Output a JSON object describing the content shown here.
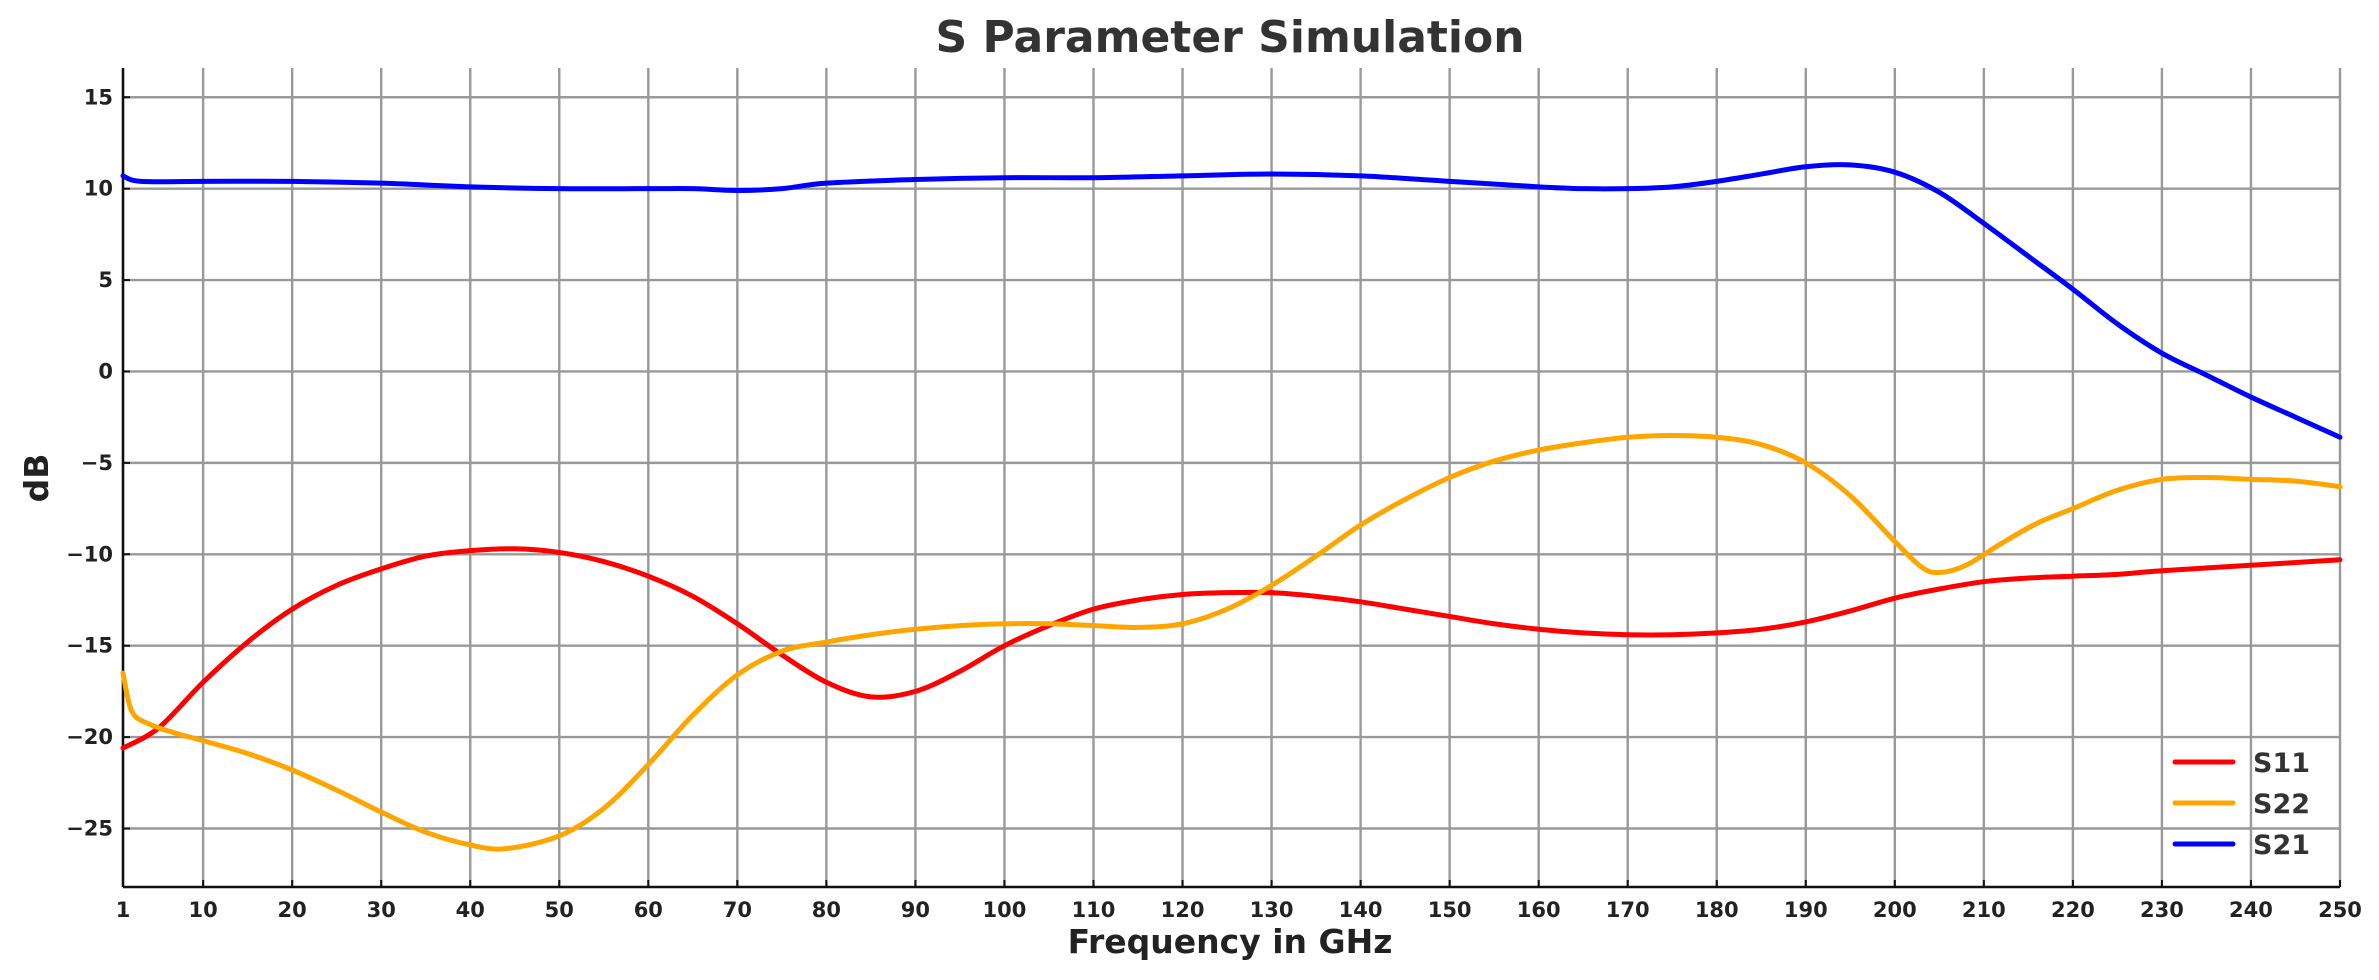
{
  "chart_data": {
    "type": "line",
    "title": "S Parameter Simulation",
    "xlabel": "Frequency in GHz",
    "ylabel": "dB",
    "xlim": [
      1,
      250
    ],
    "ylim": [
      -28.2,
      16.6
    ],
    "x_ticks": [
      1,
      10,
      20,
      30,
      40,
      50,
      60,
      70,
      80,
      90,
      100,
      110,
      120,
      130,
      140,
      150,
      160,
      170,
      180,
      190,
      200,
      210,
      220,
      230,
      240,
      250
    ],
    "y_ticks": [
      15,
      10,
      5,
      0,
      -5,
      -10,
      -15,
      -20,
      -25
    ],
    "y_tick_labels": [
      "15",
      "10",
      "5",
      "0",
      "−5",
      "−10",
      "−15",
      "−20",
      "−25"
    ],
    "grid": true,
    "legend_position": "bottom-right",
    "series": [
      {
        "name": "S11",
        "color": "#ff0000",
        "points": [
          [
            1,
            -20.6
          ],
          [
            5,
            -19.5
          ],
          [
            10,
            -17.0
          ],
          [
            15,
            -14.8
          ],
          [
            20,
            -13.0
          ],
          [
            25,
            -11.7
          ],
          [
            30,
            -10.8
          ],
          [
            35,
            -10.1
          ],
          [
            40,
            -9.8
          ],
          [
            45,
            -9.7
          ],
          [
            50,
            -9.9
          ],
          [
            55,
            -10.4
          ],
          [
            60,
            -11.2
          ],
          [
            65,
            -12.3
          ],
          [
            70,
            -13.8
          ],
          [
            75,
            -15.5
          ],
          [
            80,
            -17.0
          ],
          [
            85,
            -17.8
          ],
          [
            90,
            -17.5
          ],
          [
            95,
            -16.4
          ],
          [
            100,
            -15.0
          ],
          [
            105,
            -13.9
          ],
          [
            110,
            -13.0
          ],
          [
            115,
            -12.5
          ],
          [
            120,
            -12.2
          ],
          [
            125,
            -12.1
          ],
          [
            130,
            -12.1
          ],
          [
            135,
            -12.3
          ],
          [
            140,
            -12.6
          ],
          [
            145,
            -13.0
          ],
          [
            150,
            -13.4
          ],
          [
            155,
            -13.8
          ],
          [
            160,
            -14.1
          ],
          [
            165,
            -14.3
          ],
          [
            170,
            -14.4
          ],
          [
            175,
            -14.4
          ],
          [
            180,
            -14.3
          ],
          [
            185,
            -14.1
          ],
          [
            190,
            -13.7
          ],
          [
            195,
            -13.1
          ],
          [
            200,
            -12.4
          ],
          [
            205,
            -11.9
          ],
          [
            210,
            -11.5
          ],
          [
            215,
            -11.3
          ],
          [
            220,
            -11.2
          ],
          [
            225,
            -11.1
          ],
          [
            230,
            -10.9
          ],
          [
            240,
            -10.6
          ],
          [
            250,
            -10.3
          ]
        ]
      },
      {
        "name": "S22",
        "color": "#ffa500",
        "points": [
          [
            1,
            -16.5
          ],
          [
            2,
            -18.6
          ],
          [
            4,
            -19.3
          ],
          [
            7,
            -19.8
          ],
          [
            10,
            -20.2
          ],
          [
            15,
            -20.9
          ],
          [
            20,
            -21.8
          ],
          [
            25,
            -22.9
          ],
          [
            30,
            -24.1
          ],
          [
            35,
            -25.2
          ],
          [
            40,
            -25.9
          ],
          [
            44,
            -26.1
          ],
          [
            50,
            -25.4
          ],
          [
            55,
            -23.9
          ],
          [
            60,
            -21.5
          ],
          [
            65,
            -18.8
          ],
          [
            70,
            -16.6
          ],
          [
            75,
            -15.3
          ],
          [
            80,
            -14.8
          ],
          [
            85,
            -14.4
          ],
          [
            90,
            -14.1
          ],
          [
            95,
            -13.9
          ],
          [
            100,
            -13.8
          ],
          [
            105,
            -13.8
          ],
          [
            110,
            -13.9
          ],
          [
            115,
            -14.0
          ],
          [
            120,
            -13.8
          ],
          [
            125,
            -13.0
          ],
          [
            130,
            -11.7
          ],
          [
            135,
            -10.1
          ],
          [
            140,
            -8.4
          ],
          [
            145,
            -7.0
          ],
          [
            150,
            -5.8
          ],
          [
            155,
            -4.9
          ],
          [
            160,
            -4.3
          ],
          [
            165,
            -3.9
          ],
          [
            170,
            -3.6
          ],
          [
            175,
            -3.5
          ],
          [
            180,
            -3.6
          ],
          [
            185,
            -4.0
          ],
          [
            190,
            -5.0
          ],
          [
            195,
            -6.8
          ],
          [
            200,
            -9.3
          ],
          [
            203,
            -10.7
          ],
          [
            205,
            -11.0
          ],
          [
            208,
            -10.6
          ],
          [
            212,
            -9.4
          ],
          [
            216,
            -8.3
          ],
          [
            220,
            -7.5
          ],
          [
            225,
            -6.5
          ],
          [
            230,
            -5.9
          ],
          [
            235,
            -5.8
          ],
          [
            240,
            -5.9
          ],
          [
            245,
            -6.0
          ],
          [
            250,
            -6.3
          ]
        ]
      },
      {
        "name": "S21",
        "color": "#0000ff",
        "points": [
          [
            1,
            10.7
          ],
          [
            3,
            10.4
          ],
          [
            10,
            10.4
          ],
          [
            20,
            10.4
          ],
          [
            30,
            10.3
          ],
          [
            40,
            10.1
          ],
          [
            50,
            10.0
          ],
          [
            60,
            10.0
          ],
          [
            65,
            10.0
          ],
          [
            70,
            9.9
          ],
          [
            75,
            10.0
          ],
          [
            80,
            10.3
          ],
          [
            90,
            10.5
          ],
          [
            100,
            10.6
          ],
          [
            110,
            10.6
          ],
          [
            120,
            10.7
          ],
          [
            130,
            10.8
          ],
          [
            140,
            10.7
          ],
          [
            150,
            10.4
          ],
          [
            160,
            10.1
          ],
          [
            165,
            10.0
          ],
          [
            170,
            10.0
          ],
          [
            175,
            10.1
          ],
          [
            180,
            10.4
          ],
          [
            185,
            10.8
          ],
          [
            190,
            11.2
          ],
          [
            195,
            11.3
          ],
          [
            200,
            10.9
          ],
          [
            205,
            9.8
          ],
          [
            210,
            8.1
          ],
          [
            215,
            6.3
          ],
          [
            220,
            4.5
          ],
          [
            225,
            2.6
          ],
          [
            230,
            1.0
          ],
          [
            235,
            -0.2
          ],
          [
            240,
            -1.4
          ],
          [
            245,
            -2.5
          ],
          [
            250,
            -3.6
          ]
        ]
      }
    ]
  }
}
